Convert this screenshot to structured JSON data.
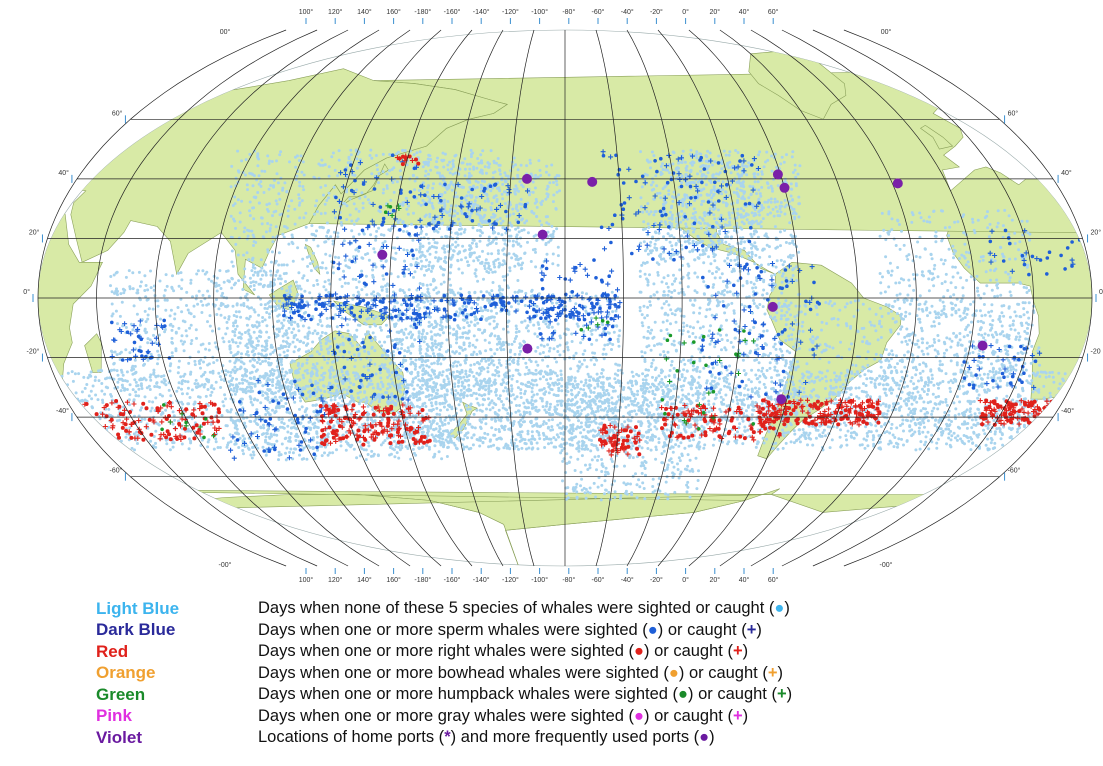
{
  "map": {
    "type": "world-map",
    "projection": "robinson-like, pacific-centered",
    "colors": {
      "ocean": "#ffffff",
      "land": "#d8eaa6",
      "land_outline": "#8aa05a",
      "graticule": "#222222",
      "light_blue": "#a9d4ee",
      "dark_blue": "#1e5fd8",
      "red": "#e0211b",
      "orange": "#f0a030",
      "green": "#1a9a2a",
      "pink": "#e030e0",
      "violet": "#7a20a8",
      "tick": "#3a8fd0"
    },
    "longitude_labels": [
      "100°",
      "120°",
      "140°",
      "160°",
      "-180°",
      "-160°",
      "-140°",
      "-120°",
      "-100°",
      "-80°",
      "-60°",
      "-40°",
      "-20°",
      "0°",
      "20°",
      "40°",
      "60°"
    ],
    "latitude_labels_left": [
      "60°",
      "40°",
      "20°",
      "0°",
      "-20°",
      "-40°",
      "-60°"
    ],
    "latitude_labels_right": [
      "60°",
      "40°",
      "20°",
      "0°",
      "-20",
      "-40°",
      "-60°"
    ],
    "pole_labels": {
      "top_left": "00°",
      "top_right": "00°",
      "bottom_left": "-00°",
      "bottom_right": "-00°"
    },
    "violet_ports": [
      {
        "lon": -157.8,
        "lat": 21.3
      },
      {
        "lon": 147,
        "lat": 14.5
      },
      {
        "lon": -163,
        "lat": -17
      },
      {
        "lon": -140,
        "lat": 39
      },
      {
        "lon": -71,
        "lat": 41.5
      },
      {
        "lon": -70,
        "lat": 37
      },
      {
        "lon": -28,
        "lat": 38.5
      },
      {
        "lon": -79,
        "lat": -3
      },
      {
        "lon": -5.7,
        "lat": -16
      },
      {
        "lon": -72,
        "lat": -34
      },
      {
        "lon": -164,
        "lat": 40
      }
    ]
  },
  "legend": [
    {
      "color": "Light Blue",
      "color_hex": "#3cb4ee",
      "text": "Days when none of these 5 species of whales were sighted or caught (",
      "sym1": "●",
      "sym1_hex": "#3cb4ee",
      "mid": ")",
      "sym2": "",
      "sym2_hex": "",
      "end": ""
    },
    {
      "color": "Dark Blue",
      "color_hex": "#2a2a9a",
      "text": "Days when one or more sperm whales were sighted (",
      "sym1": "●",
      "sym1_hex": "#1e5fd8",
      "mid": ") or caught (",
      "sym2": "+",
      "sym2_hex": "#2a2a9a",
      "end": ")"
    },
    {
      "color": "Red",
      "color_hex": "#e0211b",
      "text": "Days when one or more right whales were sighted (",
      "sym1": "●",
      "sym1_hex": "#e0211b",
      "mid": ") or caught (",
      "sym2": "+",
      "sym2_hex": "#e0211b",
      "end": ")"
    },
    {
      "color": "Orange",
      "color_hex": "#f0a030",
      "text": "Days when one or more bowhead whales were sighted (",
      "sym1": "●",
      "sym1_hex": "#f0a030",
      "mid": ") or caught (",
      "sym2": "+",
      "sym2_hex": "#f0a030",
      "end": ")"
    },
    {
      "color": "Green",
      "color_hex": "#1a8a2a",
      "text": "Days when one or more humpback whales were sighted (",
      "sym1": "●",
      "sym1_hex": "#1a8a2a",
      "mid": ") or caught (",
      "sym2": "+",
      "sym2_hex": "#1a8a2a",
      "end": ")"
    },
    {
      "color": "Pink",
      "color_hex": "#e030e0",
      "text": "Days when one or more gray whales were sighted (",
      "sym1": "●",
      "sym1_hex": "#e030e0",
      "mid": ") or caught (",
      "sym2": "+",
      "sym2_hex": "#e030e0",
      "end": ")"
    },
    {
      "color": "Violet",
      "color_hex": "#6a1aa0",
      "text": "Locations of home ports (",
      "sym1": "*",
      "sym1_hex": "#6a1aa0",
      "mid": ") and more frequently used ports (",
      "sym2": "●",
      "sym2_hex": "#6a1aa0",
      "end": ")"
    }
  ]
}
